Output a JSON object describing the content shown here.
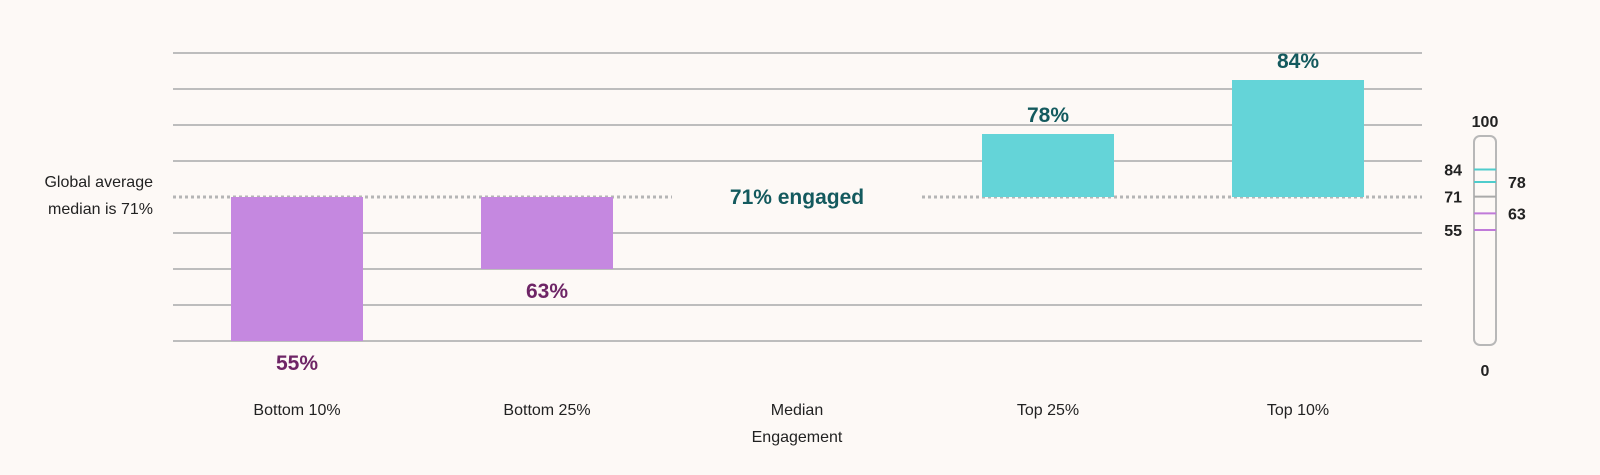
{
  "chart_data": {
    "type": "bar",
    "baseline": 71,
    "baseline_label": "71% engaged",
    "side_label": [
      "Global average",
      "median is 71%"
    ],
    "ylim": [
      51,
      87
    ],
    "categories": [
      {
        "label": [
          "Bottom 10%"
        ],
        "value": 55,
        "value_label": "55%"
      },
      {
        "label": [
          "Bottom 25%"
        ],
        "value": 63,
        "value_label": "63%"
      },
      {
        "label": [
          "Median",
          "Engagement"
        ],
        "value": null,
        "value_label": ""
      },
      {
        "label": [
          "Top 25%"
        ],
        "value": 78,
        "value_label": "78%"
      },
      {
        "label": [
          "Top 10%"
        ],
        "value": 84,
        "value_label": "84%"
      }
    ],
    "gauge": {
      "min": 0,
      "max": 100,
      "min_label": "0",
      "max_label": "100",
      "marks": [
        {
          "value": 84,
          "label": "84",
          "side": "left",
          "color": "#4fcccc"
        },
        {
          "value": 78,
          "label": "78",
          "side": "right",
          "color": "#4fcccc"
        },
        {
          "value": 71,
          "label": "71",
          "side": "left",
          "color": "#aaaaaa"
        },
        {
          "value": 63,
          "label": "63",
          "side": "right",
          "color": "#c07ad9"
        },
        {
          "value": 55,
          "label": "55",
          "side": "left",
          "color": "#c07ad9"
        }
      ]
    },
    "colors": {
      "above": "#64d4d8",
      "below": "#c588e0",
      "above_text": "#145a5e",
      "below_text": "#6e2566"
    }
  }
}
